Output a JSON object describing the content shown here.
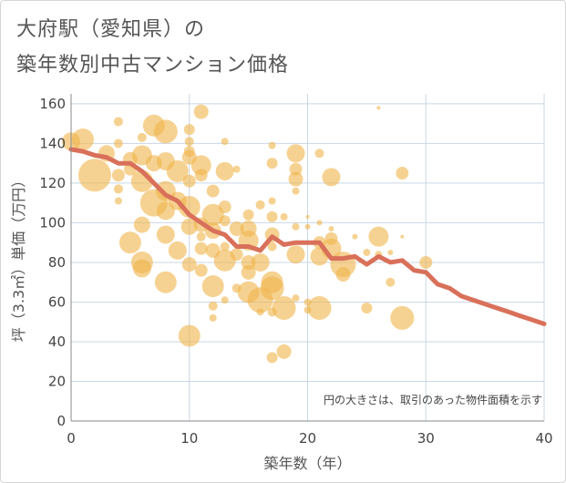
{
  "title": {
    "line1": "大府駅（愛知県）の",
    "line2": "築年数別中古マンション価格"
  },
  "chart_data": {
    "type": "scatter",
    "title": "大府駅（愛知県）の築年数別中古マンション価格",
    "xlabel": "築年数（年）",
    "ylabel": "坪（3.3㎡）単価（万円）",
    "xlim": [
      0,
      40
    ],
    "ylim": [
      0,
      165
    ],
    "xticks": [
      0,
      10,
      20,
      30,
      40
    ],
    "yticks": [
      0,
      20,
      40,
      60,
      80,
      100,
      120,
      140,
      160
    ],
    "grid": true,
    "note": "円の大きさは、取引のあった物件面積を示す",
    "colors": {
      "bubble": "#f0b44a",
      "line": "#d9705a",
      "grid": "#c9d7e6",
      "title": "#555555"
    },
    "series": [
      {
        "kind": "bubble",
        "points": [
          [
            0,
            141,
            10
          ],
          [
            1,
            142,
            12
          ],
          [
            2,
            124,
            18
          ],
          [
            3,
            135,
            9
          ],
          [
            4,
            151,
            5
          ],
          [
            4,
            140,
            5
          ],
          [
            4,
            124,
            7
          ],
          [
            4,
            117,
            5
          ],
          [
            4,
            111,
            4
          ],
          [
            5,
            132,
            8
          ],
          [
            5,
            127,
            7
          ],
          [
            5,
            90,
            12
          ],
          [
            6,
            143,
            5
          ],
          [
            6,
            134,
            11
          ],
          [
            6,
            121,
            12
          ],
          [
            6,
            99,
            9
          ],
          [
            6,
            80,
            12
          ],
          [
            6,
            77,
            10
          ],
          [
            7,
            149,
            12
          ],
          [
            7,
            130,
            9
          ],
          [
            7,
            110,
            15
          ],
          [
            8,
            146,
            13
          ],
          [
            8,
            131,
            10
          ],
          [
            8,
            116,
            11
          ],
          [
            8,
            106,
            10
          ],
          [
            8,
            94,
            10
          ],
          [
            8,
            70,
            12
          ],
          [
            9,
            126,
            12
          ],
          [
            9,
            111,
            10
          ],
          [
            9,
            86,
            10
          ],
          [
            10,
            147,
            6
          ],
          [
            10,
            141,
            5
          ],
          [
            10,
            136,
            6
          ],
          [
            10,
            133,
            8
          ],
          [
            10,
            121,
            7
          ],
          [
            10,
            108,
            12
          ],
          [
            10,
            98,
            9
          ],
          [
            10,
            79,
            8
          ],
          [
            10,
            43,
            12
          ],
          [
            11,
            156,
            8
          ],
          [
            11,
            129,
            11
          ],
          [
            11,
            124,
            7
          ],
          [
            11,
            99,
            8
          ],
          [
            11,
            93,
            5
          ],
          [
            11,
            87,
            7
          ],
          [
            11,
            76,
            7
          ],
          [
            12,
            116,
            7
          ],
          [
            12,
            104,
            12
          ],
          [
            12,
            96,
            9
          ],
          [
            12,
            86,
            8
          ],
          [
            12,
            68,
            12
          ],
          [
            12,
            58,
            5
          ],
          [
            12,
            52,
            4
          ],
          [
            13,
            141,
            4
          ],
          [
            13,
            126,
            10
          ],
          [
            13,
            108,
            7
          ],
          [
            13,
            101,
            6
          ],
          [
            13,
            88,
            5
          ],
          [
            13,
            81,
            12
          ],
          [
            13,
            61,
            4
          ],
          [
            14,
            127,
            4
          ],
          [
            14,
            97,
            8
          ],
          [
            14,
            84,
            7
          ],
          [
            14,
            67,
            5
          ],
          [
            15,
            104,
            6
          ],
          [
            15,
            97,
            9
          ],
          [
            15,
            91,
            11
          ],
          [
            15,
            80,
            8
          ],
          [
            15,
            75,
            8
          ],
          [
            15,
            65,
            12
          ],
          [
            16,
            109,
            5
          ],
          [
            16,
            80,
            10
          ],
          [
            16,
            61,
            14
          ],
          [
            16,
            55,
            4
          ],
          [
            17,
            139,
            4
          ],
          [
            17,
            130,
            6
          ],
          [
            17,
            111,
            4
          ],
          [
            17,
            103,
            6
          ],
          [
            17,
            94,
            8
          ],
          [
            17,
            88,
            5
          ],
          [
            17,
            70,
            12
          ],
          [
            17,
            67,
            13
          ],
          [
            17,
            55,
            5
          ],
          [
            17,
            32,
            6
          ],
          [
            18,
            103,
            4
          ],
          [
            18,
            57,
            13
          ],
          [
            18,
            35,
            8
          ],
          [
            19,
            135,
            10
          ],
          [
            19,
            127,
            7
          ],
          [
            19,
            122,
            8
          ],
          [
            19,
            116,
            4
          ],
          [
            19,
            98,
            4
          ],
          [
            19,
            84,
            10
          ],
          [
            19,
            62,
            4
          ],
          [
            20,
            103,
            2
          ],
          [
            20,
            98,
            3
          ],
          [
            20,
            60,
            4
          ],
          [
            20,
            56,
            4
          ],
          [
            21,
            135,
            5
          ],
          [
            21,
            100,
            3
          ],
          [
            21,
            90,
            7
          ],
          [
            21,
            83,
            10
          ],
          [
            21,
            57,
            13
          ],
          [
            22,
            123,
            10
          ],
          [
            22,
            97,
            3
          ],
          [
            22,
            92,
            7
          ],
          [
            22,
            87,
            11
          ],
          [
            23,
            79,
            14
          ],
          [
            23,
            74,
            8
          ],
          [
            24,
            93,
            3
          ],
          [
            25,
            57,
            6
          ],
          [
            25,
            85,
            4
          ],
          [
            26,
            158,
            2
          ],
          [
            26,
            93,
            11
          ],
          [
            26,
            84,
            4
          ],
          [
            27,
            85,
            3
          ],
          [
            27,
            70,
            5
          ],
          [
            28,
            125,
            7
          ],
          [
            28,
            93,
            2
          ],
          [
            28,
            52,
            13
          ],
          [
            30,
            80,
            7
          ]
        ]
      },
      {
        "kind": "line",
        "x": [
          0,
          1,
          2,
          3,
          4,
          5,
          6,
          7,
          8,
          9,
          10,
          11,
          12,
          13,
          14,
          15,
          16,
          17,
          18,
          19,
          20,
          21,
          22,
          23,
          24,
          25,
          26,
          27,
          28,
          29,
          30,
          31,
          32,
          33,
          34,
          35,
          36,
          37,
          38,
          39,
          40
        ],
        "y": [
          137,
          136,
          134,
          133,
          130,
          130,
          126,
          120,
          114,
          111,
          104,
          100,
          96,
          94,
          88,
          88,
          86,
          93,
          89,
          90,
          90,
          90,
          82,
          82,
          83,
          79,
          83,
          80,
          81,
          76,
          75,
          69,
          67,
          63,
          61,
          59,
          57,
          55,
          53,
          51,
          49
        ]
      }
    ]
  }
}
